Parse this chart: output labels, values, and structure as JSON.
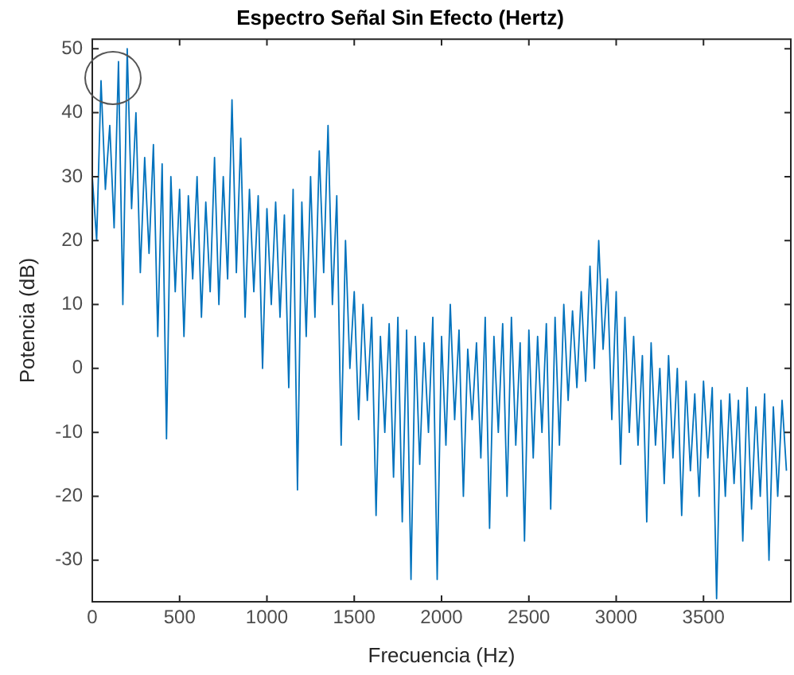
{
  "chart_data": {
    "type": "line",
    "title": "Espectro Señal Sin Efecto (Hertz)",
    "xlabel": "Frecuencia (Hz)",
    "ylabel": "Potencia (dB)",
    "xlim": [
      0,
      4000
    ],
    "xticks": [
      0,
      500,
      1000,
      1500,
      2000,
      2500,
      3000,
      3500
    ],
    "ylim": [
      -36.5,
      51.5
    ],
    "yticks": [
      -30,
      -20,
      -10,
      0,
      10,
      20,
      30,
      40,
      50
    ],
    "grid": false,
    "legend": false,
    "marker": "none",
    "line_style": "solid",
    "x": [
      0,
      25,
      50,
      75,
      100,
      125,
      150,
      175,
      200,
      225,
      250,
      275,
      300,
      325,
      350,
      375,
      400,
      425,
      450,
      475,
      500,
      525,
      550,
      575,
      600,
      625,
      650,
      675,
      700,
      725,
      750,
      775,
      800,
      825,
      850,
      875,
      900,
      925,
      950,
      975,
      1000,
      1025,
      1050,
      1075,
      1100,
      1125,
      1150,
      1175,
      1200,
      1225,
      1250,
      1275,
      1300,
      1325,
      1350,
      1375,
      1400,
      1425,
      1450,
      1475,
      1500,
      1525,
      1550,
      1575,
      1600,
      1625,
      1650,
      1675,
      1700,
      1725,
      1750,
      1775,
      1800,
      1825,
      1850,
      1875,
      1900,
      1925,
      1950,
      1975,
      2000,
      2025,
      2050,
      2075,
      2100,
      2125,
      2150,
      2175,
      2200,
      2225,
      2250,
      2275,
      2300,
      2325,
      2350,
      2375,
      2400,
      2425,
      2450,
      2475,
      2500,
      2525,
      2550,
      2575,
      2600,
      2625,
      2650,
      2675,
      2700,
      2725,
      2750,
      2775,
      2800,
      2825,
      2850,
      2875,
      2900,
      2925,
      2950,
      2975,
      3000,
      3025,
      3050,
      3075,
      3100,
      3125,
      3150,
      3175,
      3200,
      3225,
      3250,
      3275,
      3300,
      3325,
      3350,
      3375,
      3400,
      3425,
      3450,
      3475,
      3500,
      3525,
      3550,
      3575,
      3600,
      3625,
      3650,
      3675,
      3700,
      3725,
      3750,
      3775,
      3800,
      3825,
      3850,
      3875,
      3900,
      3925,
      3950,
      3975
    ],
    "series": [
      {
        "color": "#0072bd",
        "values": [
          30,
          20,
          45,
          28,
          38,
          22,
          48,
          10,
          50,
          25,
          40,
          15,
          33,
          18,
          35,
          5,
          32,
          -11,
          30,
          12,
          28,
          5,
          27,
          14,
          30,
          8,
          26,
          12,
          33,
          10,
          30,
          14,
          42,
          15,
          36,
          8,
          28,
          12,
          27,
          0,
          25,
          10,
          26,
          8,
          24,
          -3,
          28,
          -19,
          26,
          5,
          30,
          8,
          34,
          15,
          38,
          10,
          27,
          -12,
          20,
          0,
          12,
          -8,
          10,
          -5,
          8,
          -23,
          5,
          -10,
          7,
          -17,
          8,
          -24,
          6,
          -33,
          5,
          -15,
          4,
          -10,
          8,
          -33,
          5,
          -12,
          10,
          -8,
          6,
          -20,
          3,
          -8,
          4,
          -14,
          8,
          -25,
          5,
          -10,
          7,
          -20,
          8,
          -12,
          4,
          -27,
          6,
          -14,
          5,
          -10,
          7,
          -22,
          8,
          -12,
          10,
          -5,
          9,
          -3,
          12,
          -2,
          16,
          0,
          20,
          3,
          14,
          -8,
          12,
          -15,
          8,
          -10,
          5,
          -12,
          2,
          -24,
          4,
          -12,
          0,
          -18,
          2,
          -14,
          0,
          -23,
          -2,
          -16,
          -4,
          -20,
          -2,
          -14,
          -3,
          -36,
          -5,
          -20,
          -4,
          -18,
          -5,
          -27,
          -3,
          -22,
          -6,
          -20,
          -4,
          -30,
          -6,
          -20,
          -5,
          -16
        ]
      }
    ]
  }
}
